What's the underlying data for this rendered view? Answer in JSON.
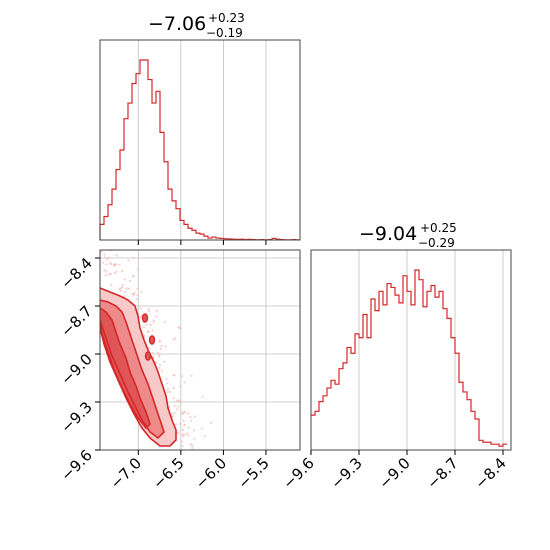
{
  "chart_data": [
    {
      "type": "histogram",
      "panel": "top-left",
      "title_value": "−7.06",
      "title_upper": "+0.23",
      "title_lower": "−0.19",
      "xlim": [
        -7.45,
        -5.1
      ],
      "bin_edges_start": -7.45,
      "bin_width": 0.047,
      "counts": [
        0.08,
        0.12,
        0.18,
        0.26,
        0.36,
        0.46,
        0.62,
        0.7,
        0.8,
        0.85,
        0.92,
        0.92,
        0.82,
        0.7,
        0.76,
        0.55,
        0.4,
        0.26,
        0.2,
        0.16,
        0.1,
        0.08,
        0.06,
        0.05,
        0.035,
        0.03,
        0.02,
        0.01,
        0.015,
        0.01,
        0.008,
        0.006,
        0.005,
        0.004,
        0.003,
        0.004,
        0.002,
        0.003,
        0.002,
        0.001,
        0.002,
        0.001,
        0.002,
        0.008,
        0.004,
        0.002,
        0.001,
        0.001,
        0.002,
        0.001
      ],
      "grid": true,
      "color": "#d62728"
    },
    {
      "type": "contour",
      "panel": "bottom-left",
      "xlim": [
        -7.45,
        -5.1
      ],
      "ylim": [
        -9.6,
        -8.35
      ],
      "xticks": [
        "−7.0",
        "−6.5",
        "−6.0",
        "−5.5"
      ],
      "xtick_values": [
        -7.0,
        -6.5,
        -6.0,
        -5.5
      ],
      "yticks": [
        "−8.4",
        "−8.7",
        "−9.0",
        "−9.3",
        "−9.6"
      ],
      "ytick_values": [
        -8.4,
        -8.7,
        -9.0,
        -9.3,
        -9.6
      ],
      "color": "#d62728",
      "grid": true
    },
    {
      "type": "histogram",
      "panel": "bottom-right",
      "title_value": "−9.04",
      "title_upper": "+0.25",
      "title_lower": "−0.29",
      "xlim": [
        -9.6,
        -8.35
      ],
      "bin_edges_start": -9.6,
      "bin_width": 0.025,
      "counts": [
        0.18,
        0.2,
        0.25,
        0.28,
        0.32,
        0.36,
        0.34,
        0.42,
        0.45,
        0.53,
        0.5,
        0.6,
        0.58,
        0.7,
        0.58,
        0.78,
        0.72,
        0.82,
        0.75,
        0.86,
        0.84,
        0.8,
        0.76,
        0.9,
        0.82,
        0.75,
        0.93,
        0.88,
        0.74,
        0.82,
        0.85,
        0.79,
        0.82,
        0.73,
        0.68,
        0.58,
        0.5,
        0.35,
        0.3,
        0.26,
        0.2,
        0.16,
        0.05,
        0.04,
        0.04,
        0.03,
        0.03,
        0.02,
        0.03
      ],
      "xticks": [
        "−9.6",
        "−9.3",
        "−9.0",
        "−8.7",
        "−8.4"
      ],
      "xtick_values": [
        -9.6,
        -9.3,
        -9.0,
        -8.7,
        -8.4
      ],
      "grid": true,
      "color": "#d62728"
    }
  ]
}
